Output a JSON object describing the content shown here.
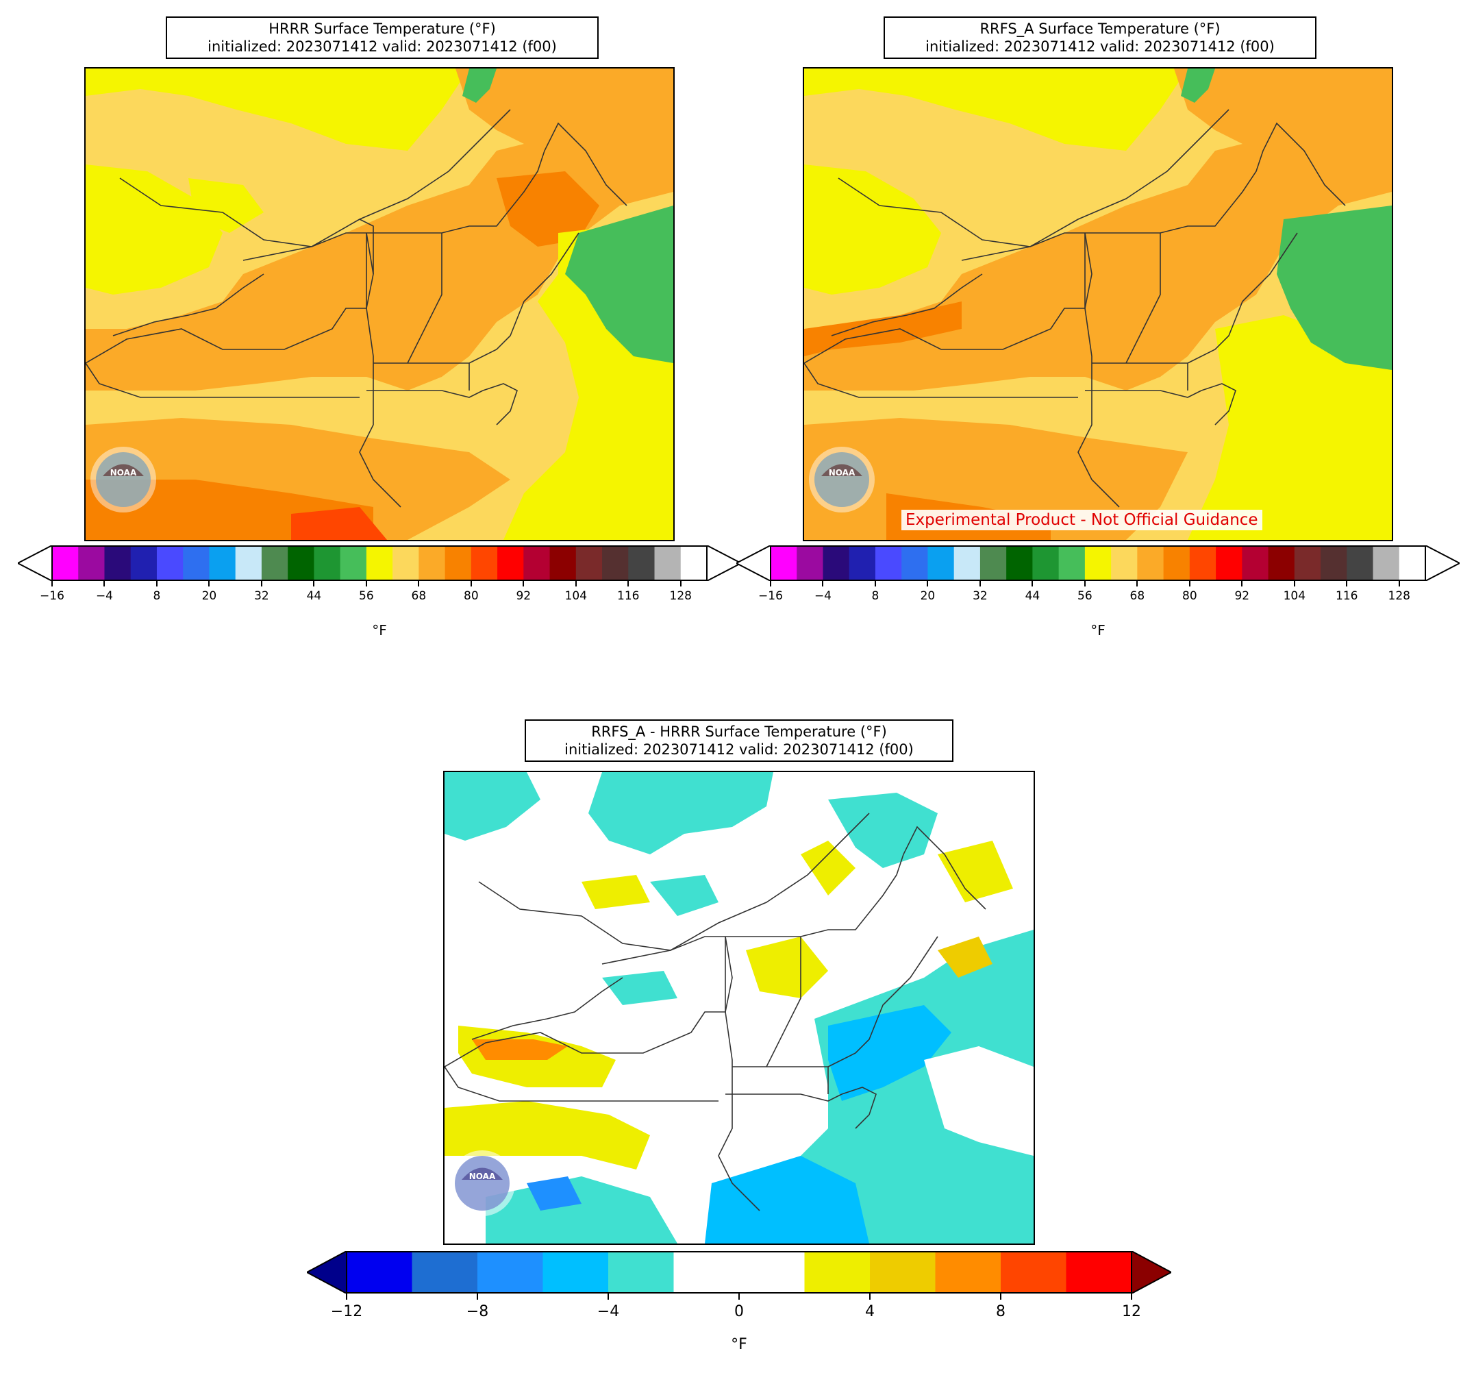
{
  "panels": [
    {
      "id": "hrrr",
      "title_line1": "HRRR Surface Temperature (°F)",
      "title_line2": "initialized: 2023071412 valid: 2023071412 (f00)",
      "logo": "noaa-logo"
    },
    {
      "id": "rrfs",
      "title_line1": "RRFS_A Surface Temperature (°F)",
      "title_line2": "initialized: 2023071412 valid: 2023071412 (f00)",
      "note": "Experimental Product - Not Official Guidance",
      "logo": "noaa-logo"
    },
    {
      "id": "diff",
      "title_line1": "RRFS_A - HRRR Surface Temperature (°F)",
      "title_line2": "initialized: 2023071412 valid: 2023071412 (f00)",
      "logo": "noaa-logo"
    }
  ],
  "temperature_colorbar": {
    "unit": "°F",
    "tick_labels": [
      "−16",
      "−4",
      "8",
      "20",
      "32",
      "44",
      "56",
      "68",
      "80",
      "92",
      "104",
      "116",
      "128"
    ],
    "colors": [
      "#ff00ff",
      "#9b0aa0",
      "#2a0a7a",
      "#2020b0",
      "#4a4aff",
      "#2e6ff0",
      "#0aa0f0",
      "#c8e8f8",
      "#4e8a50",
      "#006400",
      "#1e9632",
      "#46be5a",
      "#f5f500",
      "#fcd85c",
      "#fbaa28",
      "#f88200",
      "#ff4600",
      "#ff0000",
      "#b40032",
      "#8c0000",
      "#7a2a2a",
      "#553030",
      "#444444",
      "#b4b4b4",
      "#ffffff"
    ]
  },
  "difference_colorbar": {
    "unit": "°F",
    "tick_labels": [
      "−12",
      "−8",
      "−4",
      "0",
      "4",
      "8",
      "12"
    ],
    "colors": [
      "#0000f0",
      "#1e6ed2",
      "#1e90ff",
      "#00bfff",
      "#40e0d0",
      "#ffffff",
      "#ffffff",
      "#eeee00",
      "#eecc00",
      "#ff8c00",
      "#ff4500",
      "#ff0000"
    ],
    "under_color": "#00008b",
    "over_color": "#8b0000"
  },
  "map_colors": {
    "yellow": "#f5f500",
    "light_orange": "#fcd85c",
    "orange": "#fbaa28",
    "dark_orange": "#f88200",
    "red_orange": "#ff4600",
    "green": "#46be5a",
    "turquoise": "#40e0d0",
    "deep_sky": "#00bfff",
    "diff_yellow": "#eeee00",
    "boundary": "#333333"
  }
}
